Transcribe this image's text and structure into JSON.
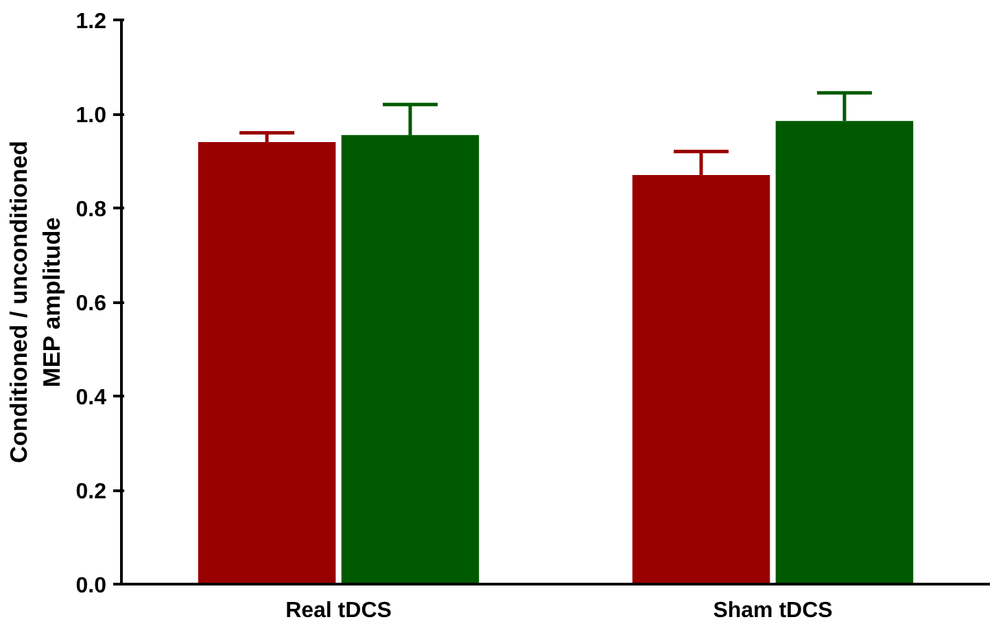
{
  "chart_data": {
    "type": "bar",
    "ylabel": "Conditioned / unconditioned\nMEP amplitude",
    "categories": [
      "Real tDCS",
      "Sham tDCS"
    ],
    "series": [
      {
        "color": "#990000",
        "values": [
          0.94,
          0.87
        ],
        "errors": [
          [
            0.94,
            0.96
          ],
          [
            0.87,
            0.92
          ]
        ]
      },
      {
        "color": "#005a00",
        "values": [
          0.955,
          0.985
        ],
        "errors": [
          [
            0.955,
            1.02
          ],
          [
            0.985,
            1.045
          ]
        ]
      }
    ],
    "ylim": [
      0,
      1.2
    ],
    "yticks": [
      {
        "value": 0,
        "label": "0.0"
      },
      {
        "value": 0.2,
        "label": "0.2"
      },
      {
        "value": 0.4,
        "label": "0.4"
      },
      {
        "value": 0.6,
        "label": "0.6"
      },
      {
        "value": 0.8,
        "label": "0.8"
      },
      {
        "value": 1.0,
        "label": "1.0"
      },
      {
        "value": 1.2,
        "label": "1.2"
      }
    ],
    "grid": false
  }
}
